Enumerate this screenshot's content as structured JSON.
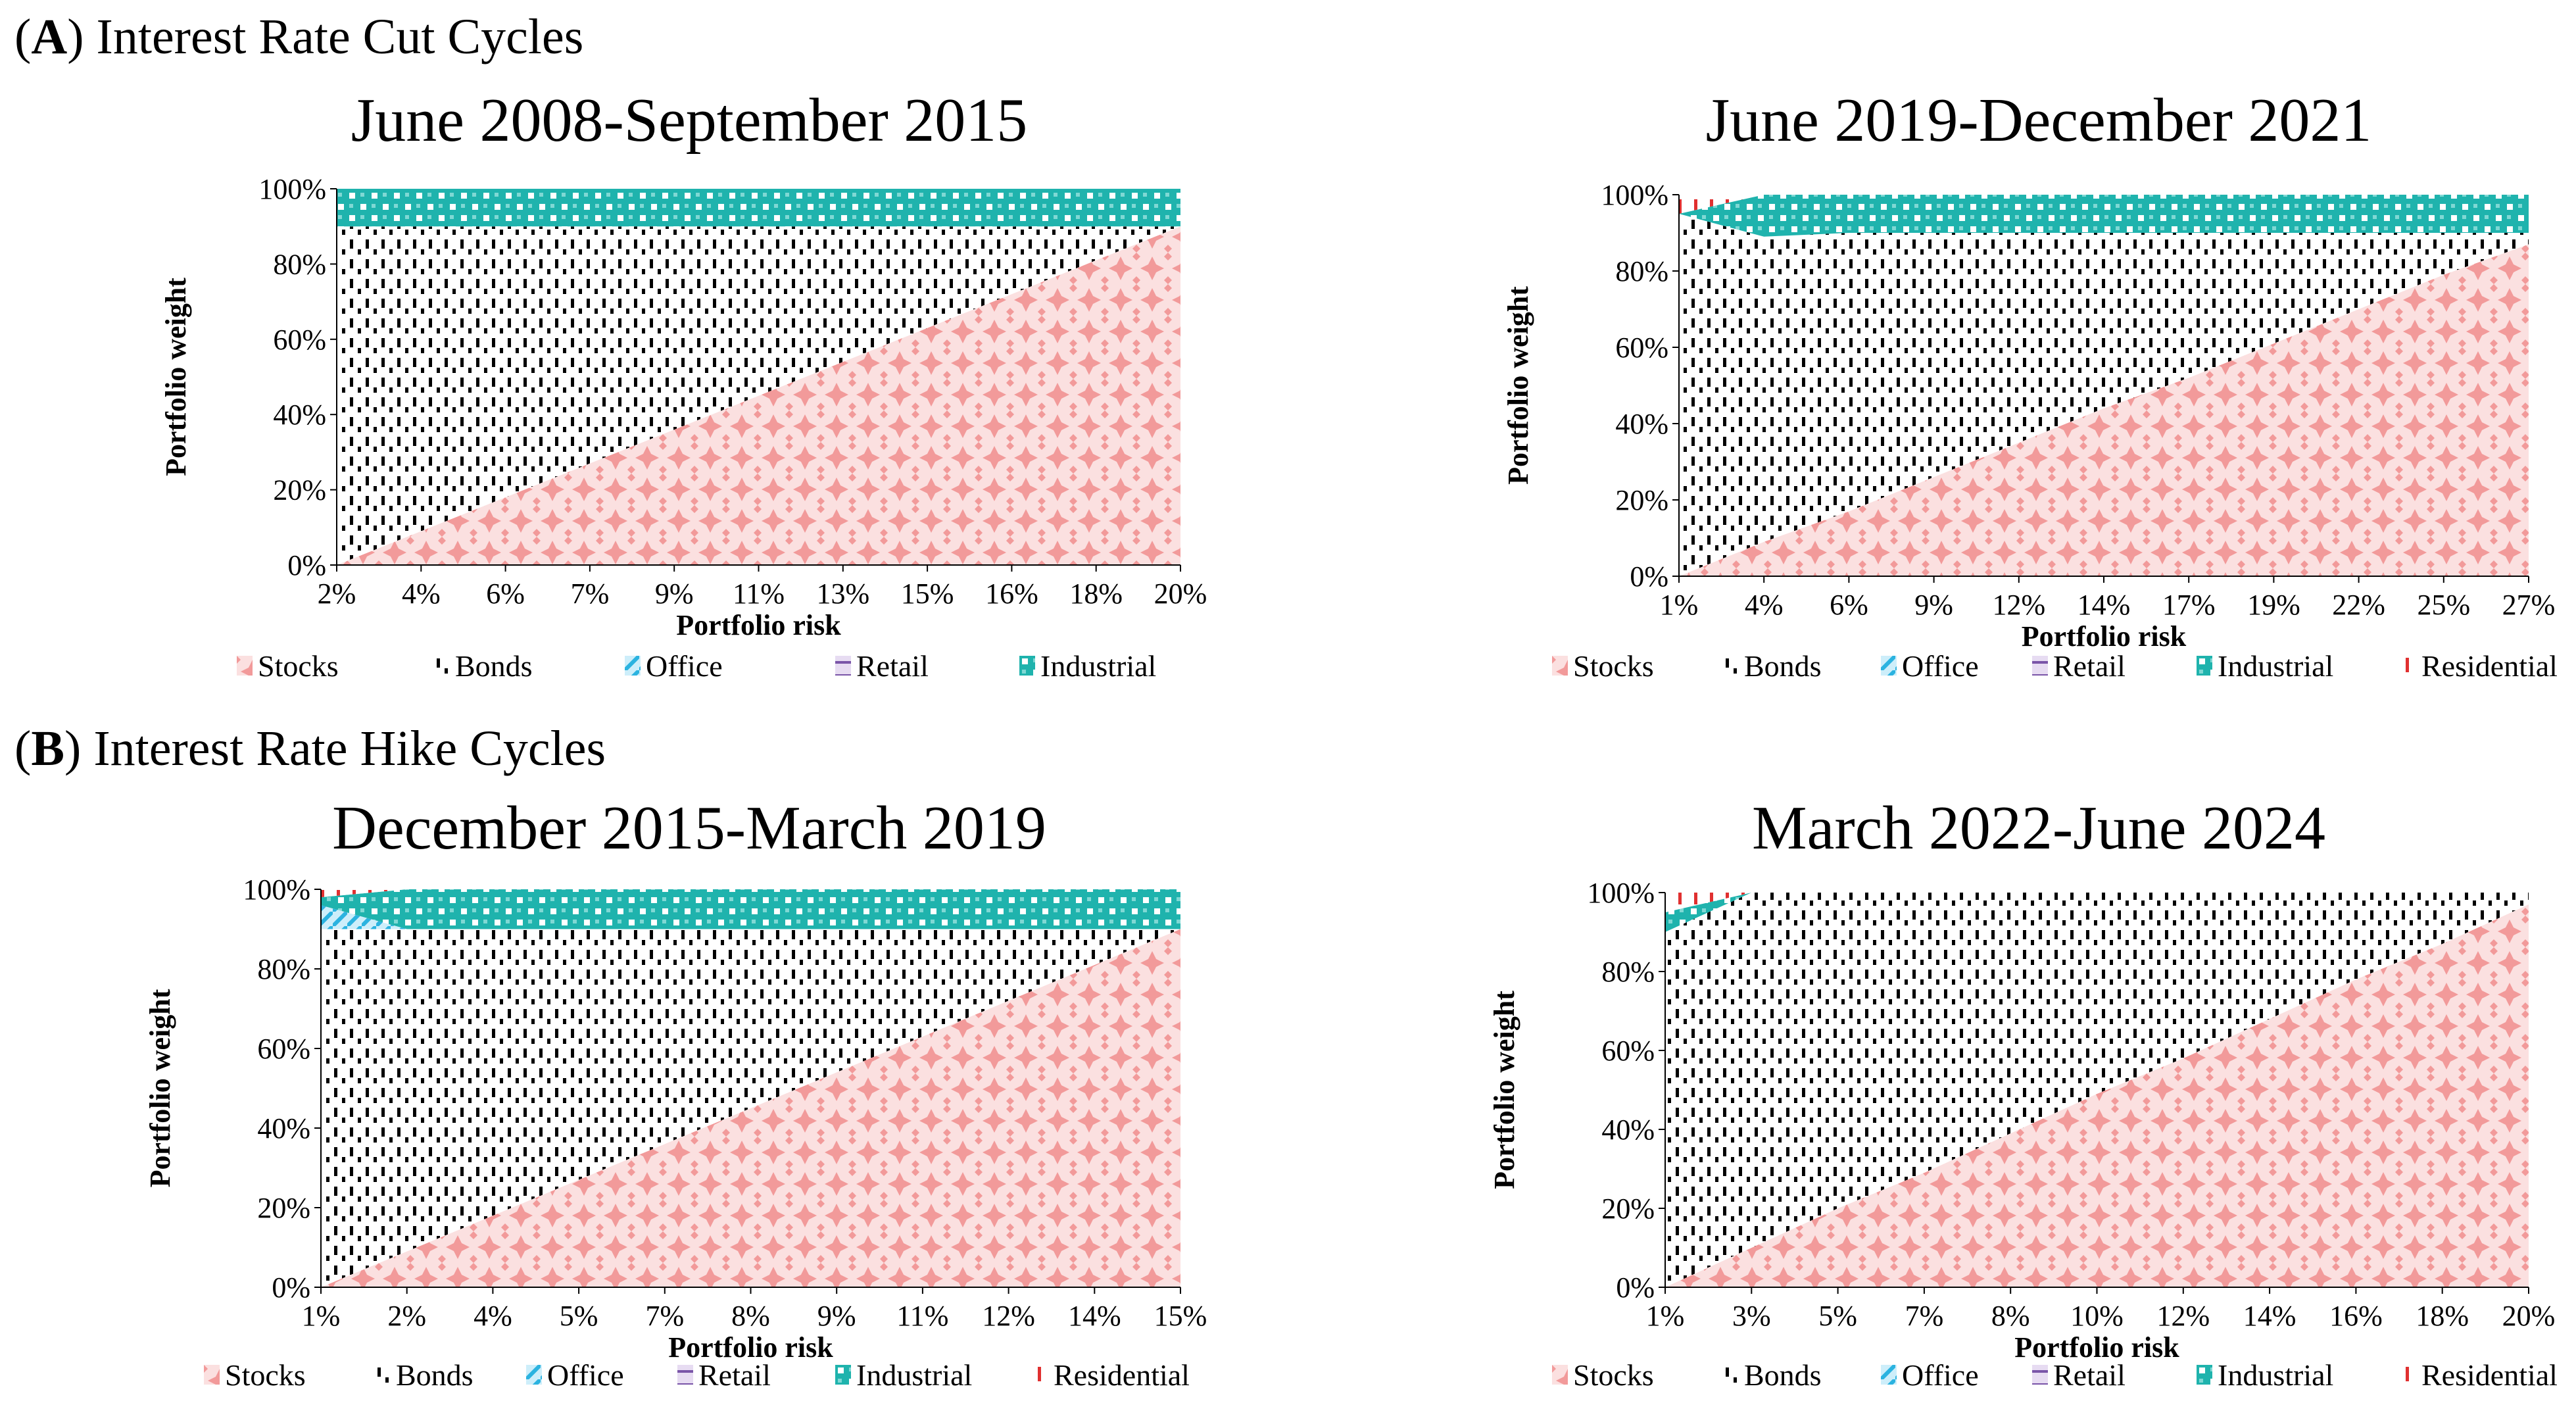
{
  "sections": {
    "a": {
      "letter": "A",
      "title": "Interest Rate Cut Cycles"
    },
    "b": {
      "letter": "B",
      "title": "Interest Rate Hike Cycles"
    }
  },
  "colors": {
    "stocks": "#f4a5a5",
    "bonds": "#000000",
    "office": "#2bb3e0",
    "retail": "#7a55a8",
    "industrial": "#1fb3ad",
    "residential": "#e03030"
  },
  "chart_data": [
    {
      "type": "area",
      "title": "June 2008-September 2015",
      "xlabel": "Portfolio risk",
      "ylabel": "Portfolio weight",
      "ylim": [
        0,
        100
      ],
      "yticks": [
        "0%",
        "20%",
        "40%",
        "60%",
        "80%",
        "100%"
      ],
      "x": [
        "2%",
        "4%",
        "6%",
        "7%",
        "9%",
        "11%",
        "13%",
        "15%",
        "16%",
        "18%",
        "20%"
      ],
      "series": [
        {
          "name": "Stocks",
          "values": [
            0,
            9,
            18,
            27,
            36,
            45,
            54,
            63,
            72,
            81,
            90
          ]
        },
        {
          "name": "Bonds",
          "values": [
            90,
            81,
            72,
            63,
            54,
            45,
            36,
            27,
            18,
            9,
            0
          ]
        },
        {
          "name": "Office",
          "values": [
            0,
            0,
            0,
            0,
            0,
            0,
            0,
            0,
            0,
            0,
            0
          ]
        },
        {
          "name": "Retail",
          "values": [
            0,
            0,
            0,
            0,
            0,
            0,
            0,
            0,
            0,
            0,
            0
          ]
        },
        {
          "name": "Industrial",
          "values": [
            10,
            10,
            10,
            10,
            10,
            10,
            10,
            10,
            10,
            10,
            10
          ]
        }
      ],
      "legend": [
        "Stocks",
        "Bonds",
        "Office",
        "Retail",
        "Industrial"
      ]
    },
    {
      "type": "area",
      "title": "June 2019-December 2021",
      "xlabel": "Portfolio risk",
      "ylabel": "Portfolio weight",
      "ylim": [
        0,
        100
      ],
      "yticks": [
        "0%",
        "20%",
        "40%",
        "60%",
        "80%",
        "100%"
      ],
      "x": [
        "1%",
        "4%",
        "6%",
        "9%",
        "12%",
        "14%",
        "17%",
        "19%",
        "22%",
        "25%",
        "27%"
      ],
      "series": [
        {
          "name": "Stocks",
          "values": [
            0,
            9,
            17,
            26,
            35,
            44,
            52,
            61,
            70,
            79,
            87
          ]
        },
        {
          "name": "Bonds",
          "values": [
            95,
            80,
            73,
            64,
            55,
            46,
            38,
            29,
            20,
            11,
            3
          ]
        },
        {
          "name": "Office",
          "values": [
            0,
            0,
            0,
            0,
            0,
            0,
            0,
            0,
            0,
            0,
            0
          ]
        },
        {
          "name": "Retail",
          "values": [
            0,
            0,
            0,
            0,
            0,
            0,
            0,
            0,
            0,
            0,
            0
          ]
        },
        {
          "name": "Industrial",
          "values": [
            0,
            11,
            10,
            10,
            10,
            10,
            10,
            10,
            10,
            10,
            10
          ]
        },
        {
          "name": "Residential",
          "values": [
            5,
            0,
            0,
            0,
            0,
            0,
            0,
            0,
            0,
            0,
            0
          ]
        }
      ],
      "legend": [
        "Stocks",
        "Bonds",
        "Office",
        "Retail",
        "Industrial",
        "Residential"
      ]
    },
    {
      "type": "area",
      "title": "December 2015-March 2019",
      "xlabel": "Portfolio risk",
      "ylabel": "Portfolio weight",
      "ylim": [
        0,
        100
      ],
      "yticks": [
        "0%",
        "20%",
        "40%",
        "60%",
        "80%",
        "100%"
      ],
      "x": [
        "1%",
        "2%",
        "4%",
        "5%",
        "7%",
        "8%",
        "9%",
        "11%",
        "12%",
        "14%",
        "15%"
      ],
      "series": [
        {
          "name": "Stocks",
          "values": [
            0,
            9,
            18,
            27,
            36,
            45,
            54,
            63,
            72,
            81,
            90
          ]
        },
        {
          "name": "Bonds",
          "values": [
            90,
            81,
            72,
            63,
            54,
            45,
            36,
            27,
            18,
            9,
            0
          ]
        },
        {
          "name": "Office",
          "values": [
            6,
            0,
            0,
            0,
            0,
            0,
            0,
            0,
            0,
            0,
            0
          ]
        },
        {
          "name": "Retail",
          "values": [
            0,
            0,
            0,
            0,
            0,
            0,
            0,
            0,
            0,
            0,
            0
          ]
        },
        {
          "name": "Industrial",
          "values": [
            2,
            10,
            10,
            10,
            10,
            10,
            10,
            10,
            10,
            10,
            10
          ]
        },
        {
          "name": "Residential",
          "values": [
            2,
            0,
            0,
            0,
            0,
            0,
            0,
            0,
            0,
            0,
            0
          ]
        }
      ],
      "legend": [
        "Stocks",
        "Bonds",
        "Office",
        "Retail",
        "Industrial",
        "Residential"
      ]
    },
    {
      "type": "area",
      "title": "March 2022-June 2024",
      "xlabel": "Portfolio risk",
      "ylabel": "Portfolio weight",
      "ylim": [
        0,
        100
      ],
      "yticks": [
        "0%",
        "20%",
        "40%",
        "60%",
        "80%",
        "100%"
      ],
      "x": [
        "1%",
        "3%",
        "5%",
        "7%",
        "8%",
        "10%",
        "12%",
        "14%",
        "16%",
        "18%",
        "20%"
      ],
      "series": [
        {
          "name": "Stocks",
          "values": [
            0,
            10,
            20,
            29,
            39,
            49,
            58,
            68,
            78,
            87,
            97
          ]
        },
        {
          "name": "Bonds",
          "values": [
            90,
            90,
            80,
            71,
            61,
            51,
            42,
            32,
            22,
            13,
            3
          ]
        },
        {
          "name": "Office",
          "values": [
            0,
            0,
            0,
            0,
            0,
            0,
            0,
            0,
            0,
            0,
            0
          ]
        },
        {
          "name": "Retail",
          "values": [
            0,
            0,
            0,
            0,
            0,
            0,
            0,
            0,
            0,
            0,
            0
          ]
        },
        {
          "name": "Industrial",
          "values": [
            5,
            0,
            0,
            0,
            0,
            0,
            0,
            0,
            0,
            0,
            0
          ]
        },
        {
          "name": "Residential",
          "values": [
            5,
            0,
            0,
            0,
            0,
            0,
            0,
            0,
            0,
            0,
            0
          ]
        }
      ],
      "legend": [
        "Stocks",
        "Bonds",
        "Office",
        "Retail",
        "Industrial",
        "Residential"
      ]
    }
  ]
}
